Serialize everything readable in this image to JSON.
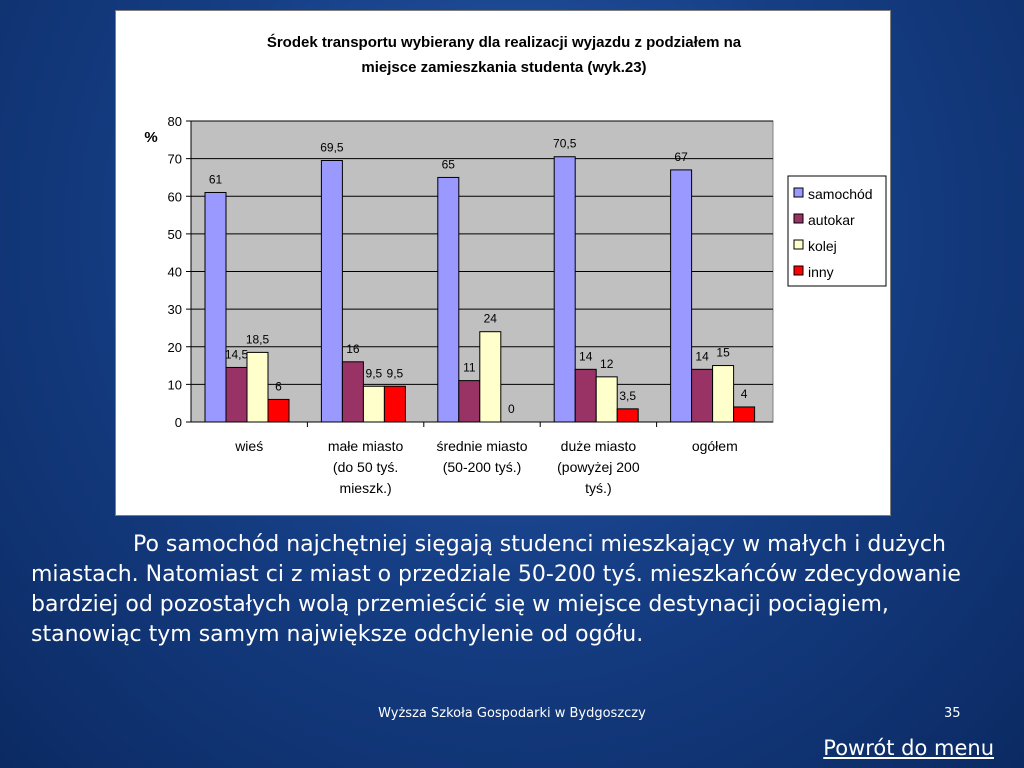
{
  "slide": {
    "paragraph": "Po samochód najchętniej sięgają studenci mieszkający w małych i dużych miastach. Natomiast ci z miast o przedziale 50-200 tyś. mieszkańców zdecydowanie bardziej od pozostałych wolą przemieścić się w miejsce destynacji pociągiem, stanowiąc tym samym największe odchylenie od ogółu.",
    "footer": "Wyższa Szkoła Gospodarki w Bydgoszczy",
    "page_number": "35",
    "menu_link": "Powrót do menu"
  },
  "chart_data": {
    "type": "bar",
    "title_line1": "Środek transportu wybierany dla realizacji wyjazdu z podziałem na",
    "title_line2": "miejsce zamieszkania studenta (wyk.23)",
    "ylabel": "%",
    "ylim": [
      0,
      80
    ],
    "yticks": [
      0,
      10,
      20,
      30,
      40,
      50,
      60,
      70,
      80
    ],
    "grid": true,
    "legend_position": "right",
    "categories": [
      [
        "wieś"
      ],
      [
        "małe miasto",
        "(do 50 tyś.",
        "mieszk.)"
      ],
      [
        "średnie miasto",
        "(50-200 tyś.)"
      ],
      [
        "duże miasto",
        "(powyżej 200",
        "tyś.)"
      ],
      [
        "ogółem"
      ]
    ],
    "series": [
      {
        "name": "samochód",
        "color": "#9999ff",
        "values": [
          61,
          69.5,
          65,
          70.5,
          67
        ],
        "labels": [
          "61",
          "69,5",
          "65",
          "70,5",
          "67"
        ]
      },
      {
        "name": "autokar",
        "color": "#993366",
        "values": [
          14.5,
          16,
          11,
          14,
          14
        ],
        "labels": [
          "14,5",
          "16",
          "11",
          "14",
          "14"
        ]
      },
      {
        "name": "kolej",
        "color": "#ffffcc",
        "values": [
          18.5,
          9.5,
          24,
          12,
          15
        ],
        "labels": [
          "18,5",
          "9,5",
          "24",
          "12",
          "15"
        ]
      },
      {
        "name": "inny",
        "color": "#ff0000",
        "values": [
          6,
          9.5,
          0,
          3.5,
          4
        ],
        "labels": [
          "6",
          "9,5",
          "0",
          "3,5",
          "4"
        ]
      }
    ]
  }
}
